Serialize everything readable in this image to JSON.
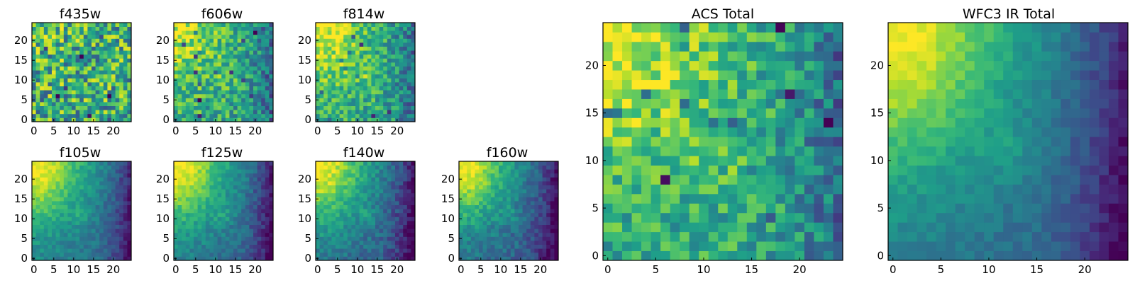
{
  "figure": {
    "colormap": "viridis",
    "grid_size": 25,
    "background": "#ffffff"
  },
  "chart_data": [
    {
      "type": "heatmap",
      "title": "f435w",
      "xticks": [
        0,
        5,
        10,
        15,
        20
      ],
      "yticks": [
        0,
        5,
        10,
        15,
        20
      ],
      "xlim": [
        0,
        25
      ],
      "ylim": [
        0,
        25
      ],
      "grid": false,
      "pattern": "noise",
      "base": 0.62,
      "gradient": 0.05,
      "noise_amp": 0.34,
      "lowspots": 14,
      "seed": 11
    },
    {
      "type": "heatmap",
      "title": "f606w",
      "xticks": [
        0,
        5,
        10,
        15,
        20
      ],
      "yticks": [
        0,
        5,
        10,
        15,
        20
      ],
      "xlim": [
        0,
        25
      ],
      "ylim": [
        0,
        25
      ],
      "grid": false,
      "pattern": "field",
      "base": 0.6,
      "gradient": 0.32,
      "noise_amp": 0.22,
      "lowspots": 14,
      "seed": 23
    },
    {
      "type": "heatmap",
      "title": "f814w",
      "xticks": [
        0,
        5,
        10,
        15,
        20
      ],
      "yticks": [
        0,
        5,
        10,
        15,
        20
      ],
      "xlim": [
        0,
        25
      ],
      "ylim": [
        0,
        25
      ],
      "grid": false,
      "pattern": "field",
      "base": 0.6,
      "gradient": 0.4,
      "noise_amp": 0.2,
      "lowspots": 10,
      "seed": 37
    },
    {
      "type": "heatmap",
      "title": "f105w",
      "xticks": [
        0,
        5,
        10,
        15,
        20
      ],
      "yticks": [
        0,
        5,
        10,
        15,
        20
      ],
      "xlim": [
        0,
        25
      ],
      "ylim": [
        0,
        25
      ],
      "grid": false,
      "pattern": "smooth",
      "base": 0.45,
      "gradient": 0.55,
      "noise_amp": 0.08,
      "lowspots": 0,
      "seed": 41
    },
    {
      "type": "heatmap",
      "title": "f125w",
      "xticks": [
        0,
        5,
        10,
        15,
        20
      ],
      "yticks": [
        0,
        5,
        10,
        15,
        20
      ],
      "xlim": [
        0,
        25
      ],
      "ylim": [
        0,
        25
      ],
      "grid": false,
      "pattern": "smooth",
      "base": 0.43,
      "gradient": 0.58,
      "noise_amp": 0.09,
      "lowspots": 0,
      "seed": 53
    },
    {
      "type": "heatmap",
      "title": "f140w",
      "xticks": [
        0,
        5,
        10,
        15,
        20
      ],
      "yticks": [
        0,
        5,
        10,
        15,
        20
      ],
      "xlim": [
        0,
        25
      ],
      "ylim": [
        0,
        25
      ],
      "grid": false,
      "pattern": "smooth",
      "base": 0.4,
      "gradient": 0.6,
      "noise_amp": 0.1,
      "lowspots": 0,
      "seed": 67
    },
    {
      "type": "heatmap",
      "title": "f160w",
      "xticks": [
        0,
        5,
        10,
        15,
        20
      ],
      "yticks": [
        0,
        5,
        10,
        15,
        20
      ],
      "xlim": [
        0,
        25
      ],
      "ylim": [
        0,
        25
      ],
      "grid": false,
      "pattern": "smooth",
      "base": 0.38,
      "gradient": 0.62,
      "noise_amp": 0.1,
      "lowspots": 0,
      "seed": 79
    },
    {
      "type": "heatmap",
      "title": "ACS Total",
      "xticks": [
        0,
        5,
        10,
        15,
        20
      ],
      "yticks": [
        0,
        5,
        10,
        15,
        20
      ],
      "xlim": [
        0,
        25
      ],
      "ylim": [
        0,
        25
      ],
      "grid": false,
      "pattern": "field",
      "base": 0.6,
      "gradient": 0.36,
      "noise_amp": 0.2,
      "lowspots": 14,
      "seed": 89
    },
    {
      "type": "heatmap",
      "title": "WFC3 IR Total",
      "xticks": [
        0,
        5,
        10,
        15,
        20
      ],
      "yticks": [
        0,
        5,
        10,
        15,
        20
      ],
      "xlim": [
        0,
        25
      ],
      "ylim": [
        0,
        25
      ],
      "grid": false,
      "pattern": "smooth",
      "base": 0.42,
      "gradient": 0.58,
      "noise_amp": 0.06,
      "lowspots": 0,
      "seed": 97
    }
  ]
}
